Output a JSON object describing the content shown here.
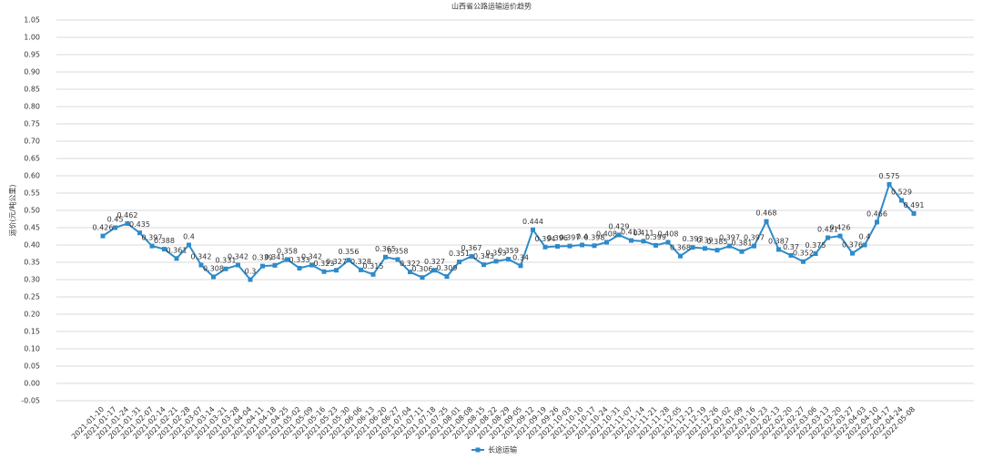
{
  "chart_data": {
    "type": "line",
    "title": "山西省公路运输运价趋势",
    "y_label": "运价(元/吨公里)",
    "categories": [
      "2021-01-10",
      "2021-01-17",
      "2021-01-24",
      "2021-01-31",
      "2021-02-07",
      "2021-02-14",
      "2021-02-21",
      "2021-02-28",
      "2021-03-07",
      "2021-03-14",
      "2021-03-21",
      "2021-03-28",
      "2021-04-04",
      "2021-04-11",
      "2021-04-18",
      "2021-04-25",
      "2021-05-02",
      "2021-05-09",
      "2021-05-16",
      "2021-05-23",
      "2021-05-30",
      "2021-06-06",
      "2021-06-13",
      "2021-06-20",
      "2021-06-27",
      "2021-07-04",
      "2021-07-11",
      "2021-07-18",
      "2021-07-25",
      "2021-08-01",
      "2021-08-08",
      "2021-08-15",
      "2021-08-22",
      "2021-08-29",
      "2021-09-05",
      "2021-09-12",
      "2021-09-19",
      "2021-09-26",
      "2021-10-03",
      "2021-10-10",
      "2021-10-17",
      "2021-10-24",
      "2021-10-31",
      "2021-11-07",
      "2021-11-14",
      "2021-11-21",
      "2021-11-28",
      "2021-12-05",
      "2021-12-12",
      "2021-12-19",
      "2021-12-26",
      "2022-01-02",
      "2022-01-09",
      "2022-01-16",
      "2022-01-23",
      "2022-02-13",
      "2022-02-20",
      "2022-02-27",
      "2022-03-06",
      "2022-03-13",
      "2022-03-20",
      "2022-03-27",
      "2022-04-03",
      "2022-04-10",
      "2022-04-17",
      "2022-04-24",
      "2022-05-08"
    ],
    "series": [
      {
        "name": "长途运输",
        "color": "#2e8bc8",
        "values": [
          0.426,
          0.45,
          0.462,
          0.435,
          0.397,
          0.388,
          0.361,
          0.4,
          0.342,
          0.308,
          0.331,
          0.342,
          0.3,
          0.339,
          0.341,
          0.358,
          0.333,
          0.342,
          0.323,
          0.327,
          0.356,
          0.328,
          0.315,
          0.365,
          0.358,
          0.322,
          0.306,
          0.327,
          0.309,
          0.351,
          0.367,
          0.343,
          0.353,
          0.359,
          0.34,
          0.444,
          0.394,
          0.396,
          0.397,
          0.4,
          0.398,
          0.408,
          0.429,
          0.413,
          0.411,
          0.399,
          0.408,
          0.368,
          0.393,
          0.39,
          0.385,
          0.397,
          0.381,
          0.397,
          0.468,
          0.387,
          0.37,
          0.352,
          0.375,
          0.421,
          0.426,
          0.376,
          0.4,
          0.466,
          0.575,
          0.529,
          0.491
        ]
      }
    ],
    "ylim": [
      -0.05,
      1.05
    ],
    "yticks": [
      -0.05,
      {
        "value": 0,
        "label": "0.00"
      },
      0.05,
      {
        "value": 0.1,
        "label": "0.10"
      },
      0.15,
      {
        "value": 0.2,
        "label": "0.20"
      },
      0.25,
      {
        "value": 0.3,
        "label": "0.30"
      },
      0.35,
      {
        "value": 0.4,
        "label": "0.40"
      },
      0.45,
      {
        "value": 0.5,
        "label": "0.50"
      },
      0.55,
      {
        "value": 0.6,
        "label": "0.60"
      },
      0.65,
      {
        "value": 0.7,
        "label": "0.70"
      },
      0.75,
      {
        "value": 0.8,
        "label": "0.80"
      },
      0.85,
      {
        "value": 0.9,
        "label": "0.90"
      },
      0.95,
      {
        "value": 1,
        "label": "1.00"
      },
      1.05
    ],
    "grid": true,
    "legend": "bottom"
  }
}
